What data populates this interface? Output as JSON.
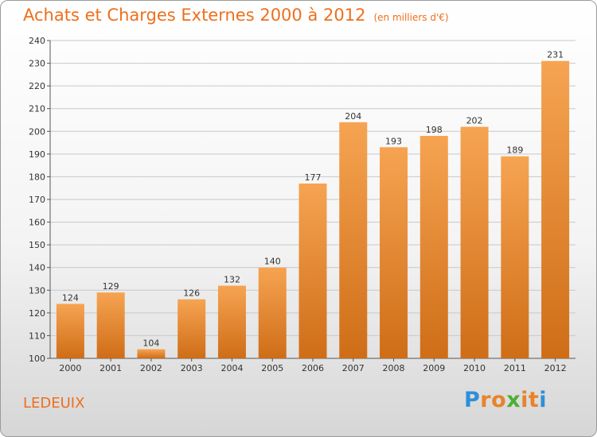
{
  "header": {
    "title": "Achats et Charges Externes 2000 à 2012",
    "subtitle": "(en milliers d'€)"
  },
  "footer": {
    "commune": "LEDEUIX",
    "brand": {
      "letters": [
        "P",
        "r",
        "o",
        "x",
        "i",
        "t",
        "i"
      ],
      "colors": [
        "#2d8fd8",
        "#e8832b",
        "#e8832b",
        "#4caf32",
        "#e8832b",
        "#e8832b",
        "#2d8fd8"
      ]
    }
  },
  "colors": {
    "accent": "#ee6f1c",
    "bar_top": "#f6a452",
    "bar_bottom": "#cf6d17",
    "grid": "#c8c8c8"
  },
  "chart_data": {
    "type": "bar",
    "title": "Achats et Charges Externes 2000 à 2012",
    "subtitle": "(en milliers d'€)",
    "xlabel": "",
    "ylabel": "",
    "categories": [
      "2000",
      "2001",
      "2002",
      "2003",
      "2004",
      "2005",
      "2006",
      "2007",
      "2008",
      "2009",
      "2010",
      "2011",
      "2012"
    ],
    "values": [
      124,
      129,
      104,
      126,
      132,
      140,
      177,
      204,
      193,
      198,
      202,
      189,
      231
    ],
    "ylim": [
      100,
      240
    ],
    "yticks": [
      100,
      110,
      120,
      130,
      140,
      150,
      160,
      170,
      180,
      190,
      200,
      210,
      220,
      230,
      240
    ],
    "grid": true
  }
}
